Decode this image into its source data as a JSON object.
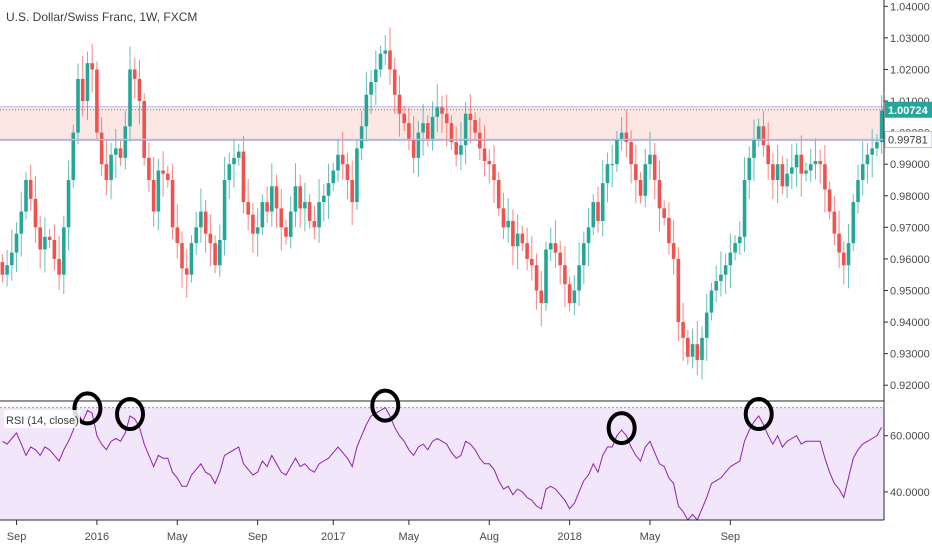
{
  "title": "U.S. Dollar/Swiss Franc, 1W, FXCM",
  "rsi_label": "RSI (14, close)",
  "price_badges": {
    "last": {
      "text": "1.00724",
      "value": 1.00724,
      "color": "#26a69a"
    },
    "level": {
      "text": "0.99781",
      "value": 0.99781
    }
  },
  "colors": {
    "up": "#26a69a",
    "down": "#ef5350",
    "wick": "#8fcfbf",
    "zone_fill": "#fbe3df",
    "zone_border": "#b7b9e8",
    "last_line": "#26a69a",
    "rsi_line": "#8e24aa",
    "rsi_band": "#efe0fa",
    "circle": "#000000"
  },
  "chart_data": [
    {
      "type": "candlestick",
      "name": "price",
      "ylim": [
        0.915,
        1.042
      ],
      "yticks": [
        "0.92000",
        "0.93000",
        "0.94000",
        "0.95000",
        "0.96000",
        "0.97000",
        "0.98000",
        "0.99000",
        "1.00000",
        "1.01000",
        "1.02000",
        "1.03000",
        "1.04000"
      ],
      "ytick_values": [
        0.92,
        0.93,
        0.94,
        0.95,
        0.96,
        0.97,
        0.98,
        0.99,
        1.0,
        1.01,
        1.02,
        1.03,
        1.04
      ],
      "zone": [
        0.9975,
        1.0082
      ],
      "levels": [
        1.00724,
        0.99781
      ],
      "xticks": [
        "Sep",
        "2016",
        "May",
        "Sep",
        "2017",
        "May",
        "Aug",
        "2018",
        "May",
        "Sep"
      ],
      "closes": [
        0.955,
        0.958,
        0.962,
        0.968,
        0.975,
        0.985,
        0.979,
        0.97,
        0.963,
        0.967,
        0.966,
        0.96,
        0.955,
        0.97,
        0.985,
        1.0,
        1.017,
        1.01,
        1.022,
        1.02,
        1.0,
        0.99,
        0.985,
        0.993,
        0.995,
        0.992,
        1.002,
        1.02,
        1.017,
        1.01,
        0.992,
        0.985,
        0.975,
        0.988,
        0.987,
        0.985,
        0.97,
        0.965,
        0.957,
        0.955,
        0.965,
        0.97,
        0.975,
        0.968,
        0.965,
        0.958,
        0.966,
        0.985,
        0.99,
        0.992,
        0.994,
        0.978,
        0.974,
        0.968,
        0.97,
        0.978,
        0.975,
        0.983,
        0.976,
        0.97,
        0.967,
        0.975,
        0.983,
        0.976,
        0.978,
        0.972,
        0.97,
        0.978,
        0.98,
        0.984,
        0.988,
        0.993,
        0.99,
        0.985,
        0.978,
        0.995,
        1.002,
        1.012,
        1.016,
        1.02,
        1.025,
        1.026,
        1.02,
        1.012,
        1.006,
        1.003,
        0.998,
        0.992,
        1.0,
        1.003,
        0.998,
        1.005,
        1.008,
        1.006,
        1.003,
        0.997,
        0.993,
        0.996,
        1.006,
        1.004,
        1.0,
        0.995,
        0.991,
        0.99,
        0.985,
        0.976,
        0.97,
        0.972,
        0.964,
        0.968,
        0.965,
        0.96,
        0.958,
        0.95,
        0.946,
        0.963,
        0.965,
        0.962,
        0.958,
        0.952,
        0.946,
        0.95,
        0.958,
        0.965,
        0.97,
        0.978,
        0.972,
        0.984,
        0.99,
        0.99,
        0.998,
        1.0,
        0.997,
        0.99,
        0.985,
        0.98,
        0.99,
        0.993,
        0.985,
        0.976,
        0.973,
        0.965,
        0.96,
        0.94,
        0.935,
        0.929,
        0.933,
        0.928,
        0.935,
        0.943,
        0.95,
        0.953,
        0.955,
        0.958,
        0.962,
        0.965,
        0.967,
        0.985,
        0.992,
        0.998,
        1.002,
        0.996,
        0.99,
        0.985,
        0.99,
        0.983,
        0.987,
        0.989,
        0.993,
        0.987,
        0.988,
        0.99,
        0.991,
        0.99,
        0.982,
        0.975,
        0.968,
        0.962,
        0.958,
        0.965,
        0.978,
        0.985,
        0.99,
        0.993,
        0.995,
        0.997,
        1.007
      ]
    },
    {
      "type": "line",
      "name": "RSI",
      "ylim": [
        30,
        72
      ],
      "yticks": [
        "40.0000",
        "60.0000"
      ],
      "ytick_values": [
        40,
        60
      ],
      "band": [
        30,
        70
      ],
      "values": [
        58,
        57,
        59,
        61,
        57,
        53,
        56,
        55,
        53,
        56,
        55,
        53,
        51,
        55,
        58,
        62,
        68,
        65,
        69,
        68,
        60,
        57,
        55,
        58,
        59,
        58,
        61,
        67,
        66,
        63,
        57,
        53,
        49,
        53,
        52,
        52,
        47,
        45,
        42,
        42,
        46,
        48,
        50,
        47,
        46,
        43,
        47,
        53,
        54,
        55,
        56,
        50,
        48,
        46,
        47,
        51,
        49,
        53,
        50,
        47,
        46,
        49,
        52,
        49,
        50,
        48,
        47,
        50,
        51,
        52,
        54,
        56,
        54,
        52,
        49,
        56,
        60,
        64,
        67,
        68,
        69,
        70,
        67,
        63,
        60,
        58,
        55,
        53,
        56,
        57,
        55,
        58,
        59,
        58,
        57,
        54,
        52,
        53,
        58,
        57,
        55,
        52,
        50,
        50,
        48,
        44,
        41,
        42,
        39,
        41,
        40,
        38,
        37,
        35,
        34,
        41,
        42,
        41,
        39,
        37,
        34,
        36,
        40,
        44,
        46,
        50,
        47,
        53,
        56,
        56,
        60,
        62,
        60,
        56,
        53,
        51,
        56,
        58,
        54,
        50,
        49,
        45,
        43,
        35,
        33,
        30,
        32,
        30,
        34,
        38,
        43,
        44,
        45,
        47,
        49,
        50,
        51,
        58,
        62,
        65,
        67,
        64,
        60,
        57,
        60,
        56,
        58,
        59,
        60,
        57,
        58,
        58,
        58,
        58,
        52,
        47,
        43,
        41,
        38,
        45,
        52,
        55,
        57,
        58,
        59,
        60,
        63
      ]
    }
  ]
}
